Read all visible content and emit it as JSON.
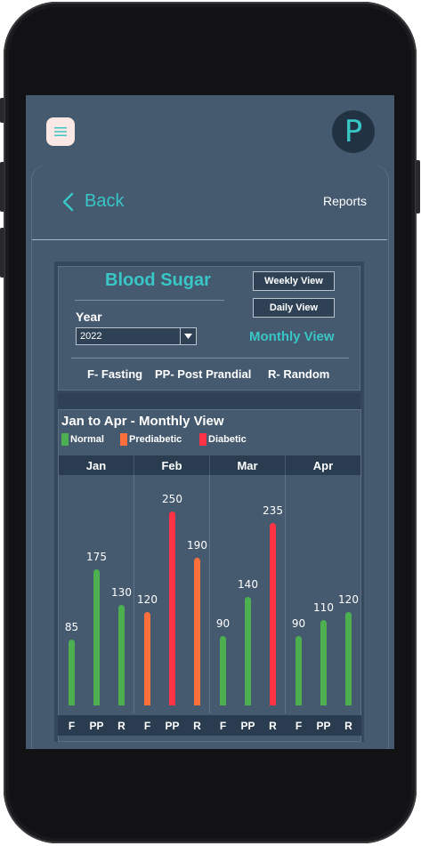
{
  "header": {
    "avatar_letter": "P"
  },
  "nav": {
    "back_label": "Back",
    "reports_label": "Reports"
  },
  "blood_sugar": {
    "title": "Blood Sugar",
    "year_label": "Year",
    "year_value": "2022",
    "weekly_view_label": "Weekly View",
    "daily_view_label": "Daily View",
    "monthly_view_label": "Monthly View",
    "abbreviations": [
      "F- Fasting",
      "PP- Post Prandial",
      "R- Random"
    ]
  },
  "colors": {
    "normal": "#4caf50",
    "prediabetic": "#ff6f3c",
    "diabetic": "#ff3344",
    "accent": "#39c6c6"
  },
  "chart_data": {
    "type": "bar",
    "title": "Jan to Apr - Monthly View",
    "legend": [
      {
        "name": "Normal",
        "color": "#4caf50"
      },
      {
        "name": "Prediabetic",
        "color": "#ff6f3c"
      },
      {
        "name": "Diabetic",
        "color": "#ff3344"
      }
    ],
    "categories": [
      "Jan",
      "Feb",
      "Mar",
      "Apr"
    ],
    "sub_categories": [
      "F",
      "PP",
      "R"
    ],
    "values": [
      [
        {
          "value": 85,
          "status": "Normal"
        },
        {
          "value": 175,
          "status": "Normal"
        },
        {
          "value": 130,
          "status": "Normal"
        }
      ],
      [
        {
          "value": 120,
          "status": "Prediabetic"
        },
        {
          "value": 250,
          "status": "Diabetic"
        },
        {
          "value": 190,
          "status": "Prediabetic"
        }
      ],
      [
        {
          "value": 90,
          "status": "Normal"
        },
        {
          "value": 140,
          "status": "Normal"
        },
        {
          "value": 235,
          "status": "Diabetic"
        }
      ],
      [
        {
          "value": 90,
          "status": "Normal"
        },
        {
          "value": 110,
          "status": "Normal"
        },
        {
          "value": 120,
          "status": "Normal"
        }
      ]
    ],
    "ylim": [
      0,
      270
    ]
  }
}
